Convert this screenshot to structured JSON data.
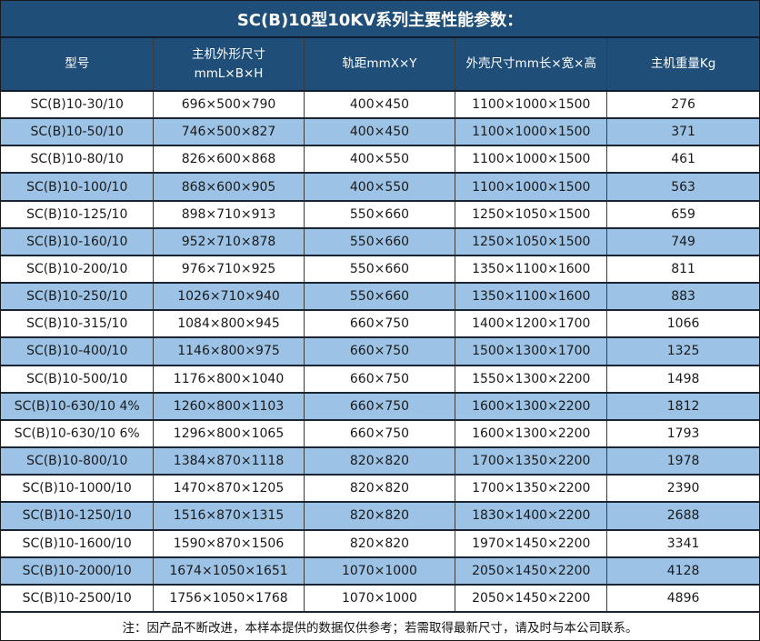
{
  "title": "SC(B)10型10KV系列主要性能参数：",
  "headers": {
    "model": "型号",
    "dimensions_line1": "主机外形尺寸",
    "dimensions_line2": "mmL×B×H",
    "rail_gauge": "轨距mmX×Y",
    "shell_size": "外壳尺寸mm长×宽×高",
    "weight": "主机重量Kg"
  },
  "note": "注：因产品不断改进，本样本提供的数据仅供参考；若需取得最新尺寸，请及时与本公司联系。",
  "colors": {
    "header_bg": "#1F4E79",
    "header_text": "#FFFFFF",
    "alt_row_bg": "#9CC2E5",
    "row_bg": "#FFFFFF",
    "body_text": "#1A1A1A",
    "rule_dark": "#101C2C"
  },
  "chart_data": {
    "type": "table",
    "title": "SC(B)10型10KV系列主要性能参数：",
    "columns": [
      "型号",
      "主机外形尺寸 mmL×B×H",
      "轨距mmX×Y",
      "外壳尺寸mm长×宽×高",
      "主机重量Kg"
    ],
    "rows": [
      {
        "model": "SC(B)10-30/10",
        "dimensions": "696×500×790",
        "rail_gauge": "400×450",
        "shell_size": "1100×1000×1500",
        "weight": "276"
      },
      {
        "model": "SC(B)10-50/10",
        "dimensions": "746×500×827",
        "rail_gauge": "400×450",
        "shell_size": "1100×1000×1500",
        "weight": "371"
      },
      {
        "model": "SC(B)10-80/10",
        "dimensions": "826×600×868",
        "rail_gauge": "400×550",
        "shell_size": "1100×1000×1500",
        "weight": "461"
      },
      {
        "model": "SC(B)10-100/10",
        "dimensions": "868×600×905",
        "rail_gauge": "400×550",
        "shell_size": "1100×1000×1500",
        "weight": "563"
      },
      {
        "model": "SC(B)10-125/10",
        "dimensions": "898×710×913",
        "rail_gauge": "550×660",
        "shell_size": "1250×1050×1500",
        "weight": "659"
      },
      {
        "model": "SC(B)10-160/10",
        "dimensions": "952×710×878",
        "rail_gauge": "550×660",
        "shell_size": "1250×1050×1500",
        "weight": "749"
      },
      {
        "model": "SC(B)10-200/10",
        "dimensions": "976×710×925",
        "rail_gauge": "550×660",
        "shell_size": "1350×1100×1600",
        "weight": "811"
      },
      {
        "model": "SC(B)10-250/10",
        "dimensions": "1026×710×940",
        "rail_gauge": "550×660",
        "shell_size": "1350×1100×1600",
        "weight": "883"
      },
      {
        "model": "SC(B)10-315/10",
        "dimensions": "1084×800×945",
        "rail_gauge": "660×750",
        "shell_size": "1400×1200×1700",
        "weight": "1066"
      },
      {
        "model": "SC(B)10-400/10",
        "dimensions": "1146×800×975",
        "rail_gauge": "660×750",
        "shell_size": "1500×1300×1700",
        "weight": "1325"
      },
      {
        "model": "SC(B)10-500/10",
        "dimensions": "1176×800×1040",
        "rail_gauge": "660×750",
        "shell_size": "1550×1300×2200",
        "weight": "1498"
      },
      {
        "model": "SC(B)10-630/10 4%",
        "dimensions": "1260×800×1103",
        "rail_gauge": "660×750",
        "shell_size": "1600×1300×2200",
        "weight": "1812"
      },
      {
        "model": "SC(B)10-630/10 6%",
        "dimensions": "1296×800×1065",
        "rail_gauge": "660×750",
        "shell_size": "1600×1300×2200",
        "weight": "1793"
      },
      {
        "model": "SC(B)10-800/10",
        "dimensions": "1384×870×1118",
        "rail_gauge": "820×820",
        "shell_size": "1700×1350×2200",
        "weight": "1978"
      },
      {
        "model": "SC(B)10-1000/10",
        "dimensions": "1470×870×1205",
        "rail_gauge": "820×820",
        "shell_size": "1700×1350×2200",
        "weight": "2390"
      },
      {
        "model": "SC(B)10-1250/10",
        "dimensions": "1516×870×1315",
        "rail_gauge": "820×820",
        "shell_size": "1830×1400×2200",
        "weight": "2688"
      },
      {
        "model": "SC(B)10-1600/10",
        "dimensions": "1590×870×1506",
        "rail_gauge": "820×820",
        "shell_size": "1970×1450×2200",
        "weight": "3341"
      },
      {
        "model": "SC(B)10-2000/10",
        "dimensions": "1674×1050×1651",
        "rail_gauge": "1070×1000",
        "shell_size": "2050×1450×2200",
        "weight": "4128"
      },
      {
        "model": "SC(B)10-2500/10",
        "dimensions": "1756×1050×1768",
        "rail_gauge": "1070×1000",
        "shell_size": "2050×1450×2200",
        "weight": "4896"
      }
    ]
  }
}
